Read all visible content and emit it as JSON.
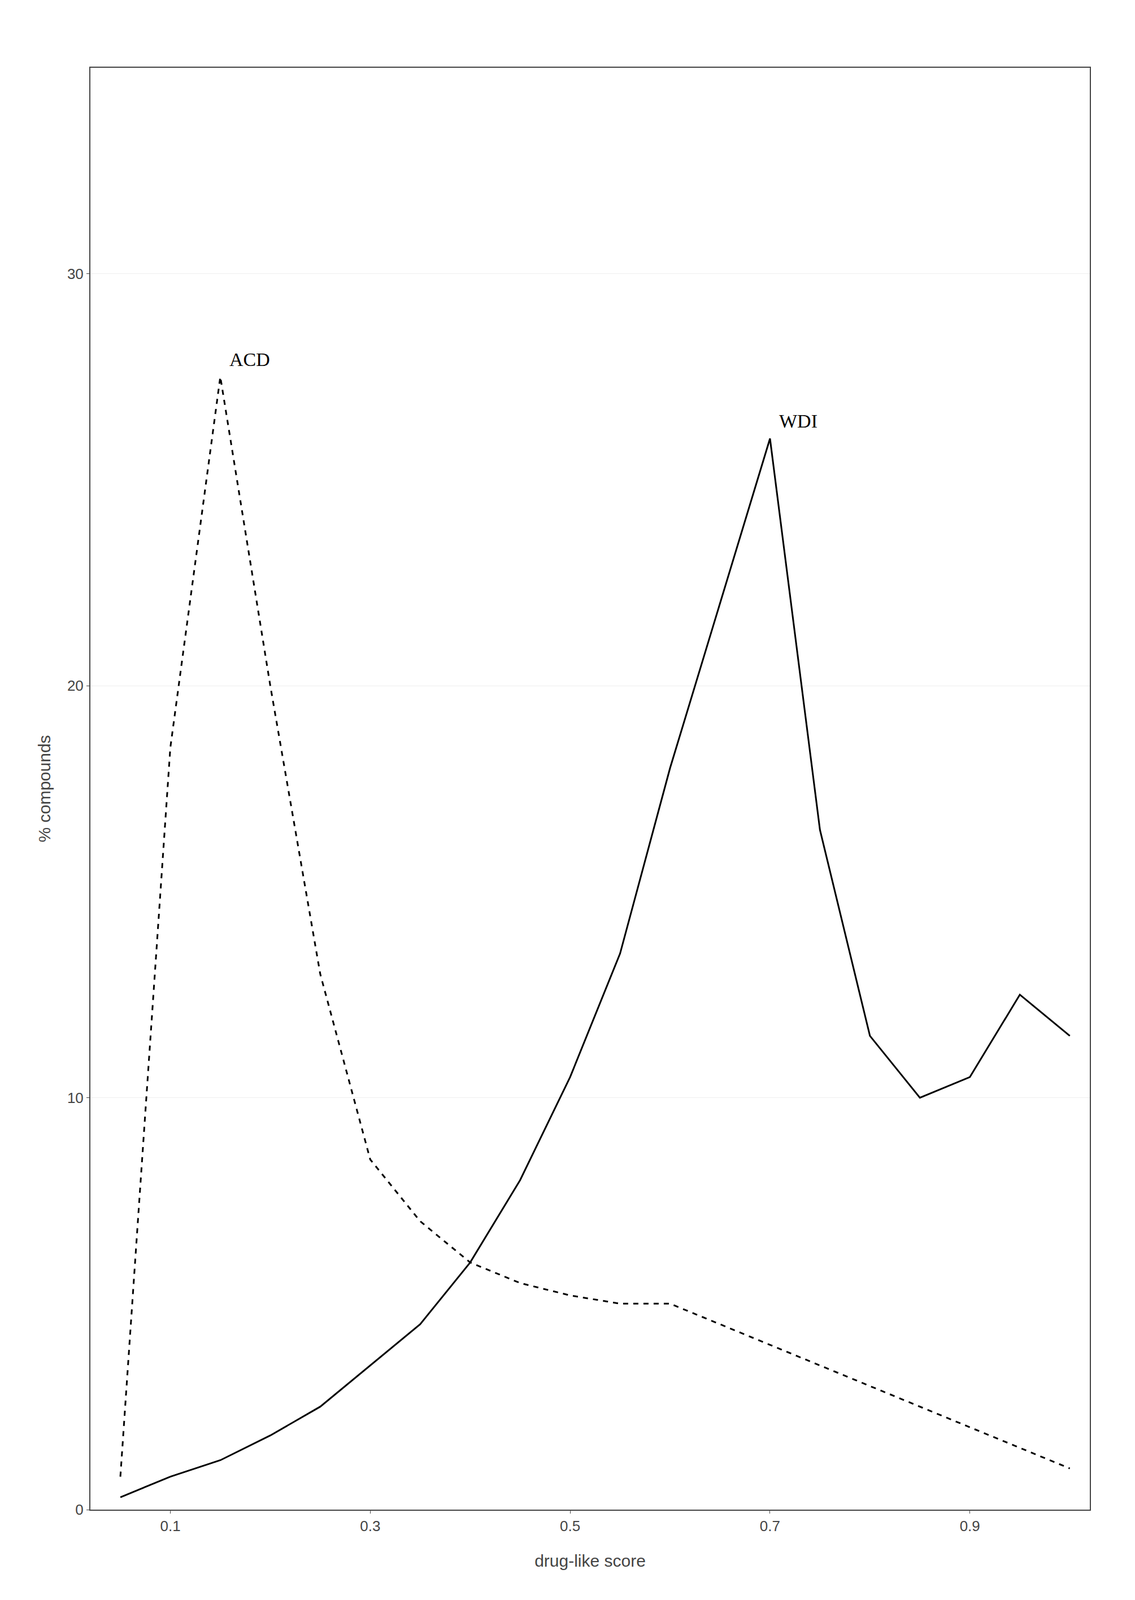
{
  "chart_data": {
    "type": "line",
    "xlabel": "drug-like score",
    "ylabel": "% compounds",
    "xlim": [
      0.02,
      1.02
    ],
    "ylim": [
      0,
      35
    ],
    "xticks": [
      0.1,
      0.3,
      0.5,
      0.7,
      0.9
    ],
    "yticks": [
      0,
      10,
      20,
      30
    ],
    "grid": "y",
    "x": [
      0.05,
      0.1,
      0.15,
      0.2,
      0.25,
      0.3,
      0.35,
      0.4,
      0.45,
      0.5,
      0.55,
      0.6,
      0.65,
      0.7,
      0.75,
      0.8,
      0.85,
      0.9,
      0.95,
      1.0
    ],
    "series": [
      {
        "name": "ACD",
        "color": "#000000",
        "line_style": "dashed",
        "values": [
          0.8,
          18.5,
          27.5,
          20.0,
          13.0,
          8.5,
          7.0,
          6.0,
          5.5,
          5.2,
          5.0,
          5.0,
          4.5,
          4.0,
          3.5,
          3.0,
          2.5,
          2.0,
          1.5,
          1.0
        ]
      },
      {
        "name": "WDI",
        "color": "#000000",
        "line_style": "solid",
        "values": [
          0.3,
          0.8,
          1.2,
          1.8,
          2.5,
          3.5,
          4.5,
          6.0,
          8.0,
          10.5,
          13.5,
          18.0,
          22.0,
          26.0,
          16.5,
          11.5,
          10.0,
          10.5,
          12.5,
          11.5
        ]
      }
    ]
  }
}
